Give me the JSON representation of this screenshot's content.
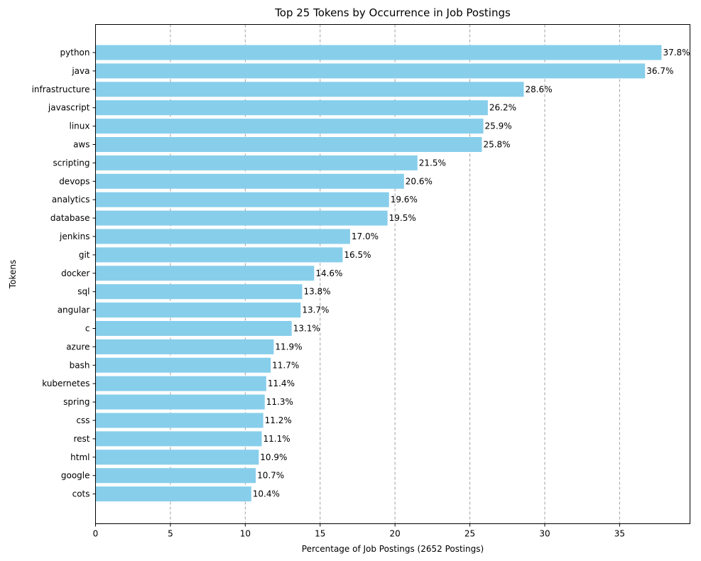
{
  "chart_data": {
    "type": "bar",
    "orientation": "horizontal",
    "title": "Top 25 Tokens by Occurrence in Job Postings",
    "xlabel": "Percentage of Job Postings (2652 Postings)",
    "ylabel": "Tokens",
    "xlim": [
      0,
      39.7
    ],
    "xticks": [
      "0",
      "5",
      "10",
      "15",
      "20",
      "25",
      "30",
      "35"
    ],
    "grid": "vertical dashed",
    "color": "#87ceeb",
    "categories": [
      "python",
      "java",
      "infrastructure",
      "javascript",
      "linux",
      "aws",
      "scripting",
      "devops",
      "analytics",
      "database",
      "jenkins",
      "git",
      "docker",
      "sql",
      "angular",
      "c",
      "azure",
      "bash",
      "kubernetes",
      "spring",
      "css",
      "rest",
      "html",
      "google",
      "cots"
    ],
    "values": [
      37.8,
      36.7,
      28.6,
      26.2,
      25.9,
      25.8,
      21.5,
      20.6,
      19.6,
      19.5,
      17.0,
      16.5,
      14.6,
      13.8,
      13.7,
      13.1,
      11.9,
      11.7,
      11.4,
      11.3,
      11.2,
      11.1,
      10.9,
      10.7,
      10.4
    ],
    "value_labels": [
      "37.8%",
      "36.7%",
      "28.6%",
      "26.2%",
      "25.9%",
      "25.8%",
      "21.5%",
      "20.6%",
      "19.6%",
      "19.5%",
      "17.0%",
      "16.5%",
      "14.6%",
      "13.8%",
      "13.7%",
      "13.1%",
      "11.9%",
      "11.7%",
      "11.4%",
      "11.3%",
      "11.2%",
      "11.1%",
      "10.9%",
      "10.7%",
      "10.4%"
    ]
  }
}
